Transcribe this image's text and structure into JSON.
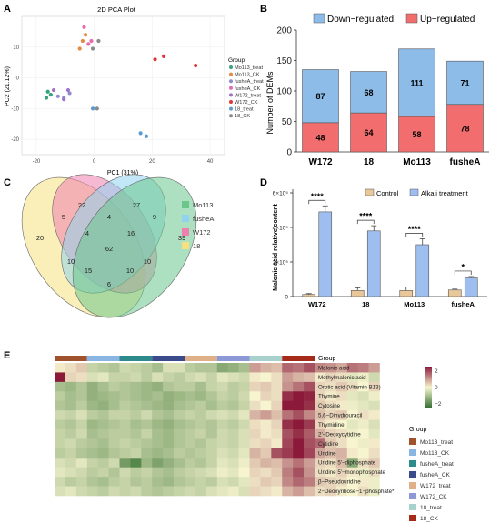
{
  "panels": {
    "A": "A",
    "B": "B",
    "C": "C",
    "D": "D",
    "E": "E"
  },
  "chart_data": [
    {
      "panel": "A",
      "type": "scatter",
      "title": "2D PCA Plot",
      "xlabel": "PC1 (31%)",
      "ylabel": "PC2 (21.12%)",
      "xlim": [
        -25,
        45
      ],
      "ylim": [
        -25,
        20
      ],
      "xticks": [
        "-20",
        "0",
        "20",
        "40"
      ],
      "yticks": [
        "10",
        "0",
        "-10",
        "-20"
      ],
      "legend_title": "Group",
      "legend_position": "right",
      "series": [
        {
          "name": "Mo113_treat",
          "color": "#3aa27a",
          "points": [
            [
              -16,
              -4.5
            ],
            [
              -16.5,
              -6.5
            ],
            [
              -15,
              -5.5
            ]
          ]
        },
        {
          "name": "Mo113_CK",
          "color": "#e48a43",
          "points": [
            [
              -3,
              14
            ],
            [
              -4,
              12
            ],
            [
              -5,
              9.5
            ]
          ]
        },
        {
          "name": "fusheA_treat",
          "color": "#8f8ad0",
          "points": [
            [
              -10.5,
              -6.5
            ],
            [
              -12.5,
              -6
            ],
            [
              -8.5,
              -5
            ]
          ]
        },
        {
          "name": "fusheA_CK",
          "color": "#e76bae",
          "points": [
            [
              -3.5,
              16.5
            ],
            [
              -1,
              12
            ],
            [
              -2,
              11
            ]
          ]
        },
        {
          "name": "W172_treat",
          "color": "#9f73c7",
          "points": [
            [
              -14,
              -4
            ],
            [
              -9,
              -4
            ],
            [
              -10.5,
              -7
            ]
          ]
        },
        {
          "name": "W172_CK",
          "color": "#e03838",
          "points": [
            [
              21,
              6
            ],
            [
              24,
              7
            ],
            [
              35,
              4
            ]
          ]
        },
        {
          "name": "18_treat",
          "color": "#5b9bd0",
          "points": [
            [
              16,
              -18
            ],
            [
              18,
              -19
            ],
            [
              -0.5,
              -10
            ]
          ]
        },
        {
          "name": "18_CK",
          "color": "#8a8a8a",
          "points": [
            [
              1,
              -10
            ],
            [
              1.5,
              12
            ],
            [
              -0.5,
              9.5
            ]
          ]
        }
      ]
    },
    {
      "panel": "B",
      "type": "bar",
      "stacked": true,
      "categories": [
        "W172",
        "18",
        "Mo113",
        "fusheA"
      ],
      "ylabel": "Number of DEMs",
      "ylim": [
        0,
        200
      ],
      "yticks": [
        "0",
        "50",
        "100",
        "150",
        "200"
      ],
      "legend_position": "top",
      "series": [
        {
          "name": "Down−regulated",
          "color": "#8dbce8",
          "values": [
            87,
            68,
            111,
            71
          ]
        },
        {
          "name": "Up−regulated",
          "color": "#f26d6d",
          "values": [
            48,
            64,
            58,
            78
          ]
        }
      ]
    },
    {
      "panel": "C",
      "type": "venn",
      "sets": [
        {
          "name": "Mo113",
          "color": "#69c78c"
        },
        {
          "name": "fusheA",
          "color": "#8fd3ef"
        },
        {
          "name": "W172",
          "color": "#ee7fb1"
        },
        {
          "name": "18",
          "color": "#f5e17f"
        }
      ],
      "regions": [
        {
          "label": "20",
          "sets": [
            "18"
          ]
        },
        {
          "label": "22",
          "sets": [
            "W172"
          ]
        },
        {
          "label": "27",
          "sets": [
            "fusheA"
          ]
        },
        {
          "label": "39",
          "sets": [
            "Mo113"
          ]
        },
        {
          "label": "5",
          "sets": [
            "18",
            "W172"
          ]
        },
        {
          "label": "4",
          "sets": [
            "W172",
            "fusheA"
          ]
        },
        {
          "label": "9",
          "sets": [
            "fusheA",
            "Mo113"
          ]
        },
        {
          "label": "4",
          "sets": [
            "18",
            "W172",
            "fusheA"
          ]
        },
        {
          "label": "16",
          "sets": [
            "W172",
            "fusheA",
            "Mo113"
          ]
        },
        {
          "label": "62",
          "sets": [
            "18",
            "W172",
            "fusheA",
            "Mo113"
          ]
        },
        {
          "label": "10",
          "sets": [
            "18",
            "fusheA"
          ]
        },
        {
          "label": "10",
          "sets": [
            "W172",
            "Mo113"
          ]
        },
        {
          "label": "15",
          "sets": [
            "18",
            "fusheA",
            "Mo113"
          ]
        },
        {
          "label": "10",
          "sets": [
            "18",
            "W172",
            "Mo113"
          ]
        },
        {
          "label": "6",
          "sets": [
            "18",
            "Mo113"
          ]
        }
      ]
    },
    {
      "panel": "D",
      "type": "bar",
      "categories": [
        "W172",
        "18",
        "Mo113",
        "fusheA"
      ],
      "ylabel": "Malonic acid relative content",
      "ylim": [
        0,
        600000
      ],
      "yticks": [
        "0",
        "2×10⁵",
        "4×10⁵",
        "6×10⁵"
      ],
      "legend_position": "top",
      "series": [
        {
          "name": "Control",
          "color": "#e8c79a",
          "values": [
            12000,
            35000,
            35000,
            38000
          ],
          "errors": [
            5000,
            15000,
            20000,
            5000
          ]
        },
        {
          "name": "Alkali treatment",
          "color": "#9ebef0",
          "values": [
            490000,
            380000,
            300000,
            108000
          ],
          "errors": [
            35000,
            30000,
            35000,
            8000
          ]
        }
      ],
      "significance": [
        "****",
        "****",
        "****",
        "*"
      ]
    },
    {
      "panel": "E",
      "type": "heatmap",
      "row_labels": [
        "Malonic acid",
        "Methylmalonic acid",
        "Orotic acid (Vitamin B13)",
        "Thymine",
        "Cytosine",
        "5,6−Dihydrouracil",
        "Thymidine",
        "2′−Deoxycytidine",
        "Cytidine",
        "Uridine",
        "Uridine 5′−diphosphate",
        "Uridine 5′−monophosphate",
        "β−Pseudouridine",
        "2−Deoxyribose−1−phosphate*"
      ],
      "column_groups": [
        "Mo113_treat",
        "Mo113_CK",
        "fusheA_treat",
        "fusheA_CK",
        "W172_treat",
        "W172_CK",
        "18_treat",
        "18_CK"
      ],
      "replicates": 3,
      "annotation_title": "Group",
      "group_colors": [
        "#a0522d",
        "#8ab5e3",
        "#2e8b8b",
        "#3b4a8a",
        "#e0b089",
        "#8c99d6",
        "#a8d0cc",
        "#a52a1a"
      ],
      "color_scale": {
        "min": -2,
        "max": 2,
        "ticks": [
          "2",
          "0",
          "−2"
        ],
        "colors": [
          "#2e6b2a",
          "#f7f5d0",
          "#8b1a3a"
        ]
      },
      "values": [
        [
          0.1,
          0.2,
          0.4,
          -0.5,
          -0.6,
          -0.7,
          -0.4,
          -0.5,
          -0.6,
          -0.8,
          -0.3,
          -0.3,
          -0.6,
          -0.7,
          -0.7,
          -1.1,
          -1.0,
          -0.8,
          0.8,
          0.6,
          0.5,
          1.3,
          1.2,
          1.5,
          1.0,
          0.9,
          0.7,
          1.2,
          1.1,
          0.8
        ],
        [
          2.2,
          0.3,
          0.2,
          -0.3,
          -0.2,
          -0.5,
          -0.5,
          -0.4,
          -0.6,
          -0.3,
          -0.5,
          -0.6,
          -0.4,
          -0.3,
          -0.5,
          -0.2,
          -0.3,
          -0.4,
          0.1,
          0.0,
          0.2,
          0.8,
          0.6,
          0.5,
          0.1,
          0.3,
          0.2,
          -0.2,
          -0.1,
          -0.4
        ],
        [
          -0.8,
          -0.9,
          -0.7,
          -1.0,
          -0.8,
          -0.6,
          -0.7,
          -0.8,
          -0.9,
          -1.0,
          -0.7,
          -0.6,
          -0.6,
          -0.8,
          -0.5,
          -0.4,
          -0.6,
          -0.5,
          0.3,
          0.4,
          0.2,
          0.9,
          1.2,
          1.5,
          0.3,
          0.2,
          0.4,
          0.2,
          0.0,
          0.3
        ],
        [
          -0.6,
          -0.8,
          -0.7,
          -1.0,
          -0.9,
          -0.8,
          -0.7,
          -0.8,
          -0.9,
          -0.8,
          -1.0,
          -0.9,
          -0.8,
          -0.9,
          -0.7,
          -0.5,
          -0.6,
          -0.4,
          0.0,
          0.3,
          0.2,
          1.8,
          2.0,
          1.9,
          0.3,
          0.1,
          0.2,
          -0.2,
          -0.3,
          -0.1
        ],
        [
          -0.7,
          -0.8,
          -0.6,
          -0.9,
          -1.0,
          -0.8,
          -0.6,
          -0.7,
          -0.8,
          -0.9,
          -1.0,
          -0.8,
          -0.7,
          -0.6,
          -0.8,
          -0.6,
          -0.7,
          -0.5,
          0.2,
          0.0,
          0.3,
          2.0,
          2.2,
          1.8,
          0.4,
          0.2,
          0.1,
          -0.1,
          -0.2,
          -0.3
        ],
        [
          -0.4,
          -0.5,
          -0.3,
          -0.6,
          -0.7,
          -0.5,
          -0.5,
          -0.6,
          -0.4,
          -0.7,
          -0.8,
          -0.6,
          -0.5,
          -0.6,
          -0.4,
          -0.3,
          -0.4,
          -0.2,
          0.6,
          0.8,
          0.5,
          1.2,
          1.5,
          1.0,
          0.5,
          0.3,
          0.4,
          0.0,
          0.2,
          0.1
        ],
        [
          -0.6,
          -0.7,
          -0.5,
          -0.9,
          -0.8,
          -0.7,
          -0.6,
          -0.8,
          -0.7,
          -0.9,
          -1.0,
          -0.8,
          -0.7,
          -0.6,
          -0.7,
          -0.5,
          -0.6,
          -0.4,
          0.2,
          0.1,
          0.3,
          1.8,
          2.2,
          1.7,
          0.3,
          0.1,
          0.0,
          -0.2,
          -0.1,
          -0.3
        ],
        [
          -0.5,
          -0.6,
          -0.4,
          -0.8,
          -0.7,
          -0.6,
          -0.6,
          -0.7,
          -0.5,
          -0.8,
          -0.9,
          -0.7,
          -0.6,
          -0.5,
          -0.7,
          -0.4,
          -0.5,
          -0.3,
          0.3,
          0.1,
          0.2,
          1.5,
          1.8,
          1.4,
          0.6,
          0.3,
          0.2,
          -0.1,
          0.0,
          -0.2
        ],
        [
          -0.5,
          -0.4,
          -0.6,
          -0.7,
          -0.8,
          -0.6,
          -0.5,
          -0.6,
          -0.7,
          -0.8,
          -0.9,
          -0.7,
          -0.6,
          -0.7,
          -0.5,
          -0.4,
          -0.5,
          -0.3,
          0.2,
          0.3,
          0.1,
          1.6,
          2.0,
          1.5,
          1.3,
          0.4,
          0.2,
          0.0,
          -0.1,
          0.1
        ],
        [
          -0.6,
          -0.5,
          -0.7,
          -0.8,
          -0.9,
          -0.7,
          -0.6,
          -0.5,
          -0.8,
          -0.9,
          -0.8,
          -0.6,
          -0.7,
          -0.6,
          -0.5,
          -0.3,
          -0.4,
          -0.2,
          0.6,
          0.4,
          1.5,
          1.7,
          2.0,
          1.6,
          0.7,
          0.5,
          0.6,
          0.1,
          0.0,
          0.2
        ],
        [
          -0.3,
          -0.4,
          -0.2,
          -0.5,
          -0.6,
          -0.4,
          -1.3,
          -1.6,
          -0.9,
          -1.2,
          -1.0,
          -0.8,
          -0.6,
          -0.7,
          -0.5,
          -0.2,
          -0.3,
          -0.1,
          0.4,
          0.6,
          0.5,
          0.9,
          1.2,
          0.8,
          0.3,
          0.2,
          0.5,
          -1.1,
          0.2,
          0.4
        ],
        [
          -0.2,
          -0.3,
          -0.4,
          -0.6,
          -0.5,
          -0.7,
          -0.4,
          -0.6,
          -0.5,
          -0.7,
          -0.8,
          -0.6,
          -0.5,
          -0.4,
          -0.3,
          -0.1,
          -0.2,
          0.0,
          0.3,
          0.2,
          0.4,
          1.1,
          1.5,
          0.9,
          0.2,
          0.1,
          0.3,
          0.1,
          -0.1,
          0.2
        ],
        [
          -0.4,
          -0.6,
          -0.5,
          -0.7,
          -0.8,
          -0.6,
          -0.5,
          -0.7,
          -0.6,
          -0.8,
          -0.9,
          -0.7,
          -0.6,
          -0.5,
          -0.6,
          -0.3,
          -0.4,
          -0.2,
          0.2,
          0.4,
          0.3,
          1.0,
          1.3,
          1.1,
          0.4,
          0.3,
          0.2,
          0.0,
          0.1,
          -0.1
        ],
        [
          -0.3,
          -0.2,
          -0.4,
          -0.5,
          -0.6,
          -0.4,
          -0.5,
          -0.4,
          -0.6,
          -0.7,
          -0.6,
          -0.5,
          -0.4,
          -0.5,
          -0.3,
          -0.2,
          -0.1,
          -0.3,
          0.3,
          0.2,
          0.1,
          0.6,
          0.8,
          0.5,
          0.2,
          0.3,
          0.1,
          0.0,
          0.2,
          -0.1
        ]
      ]
    }
  ]
}
